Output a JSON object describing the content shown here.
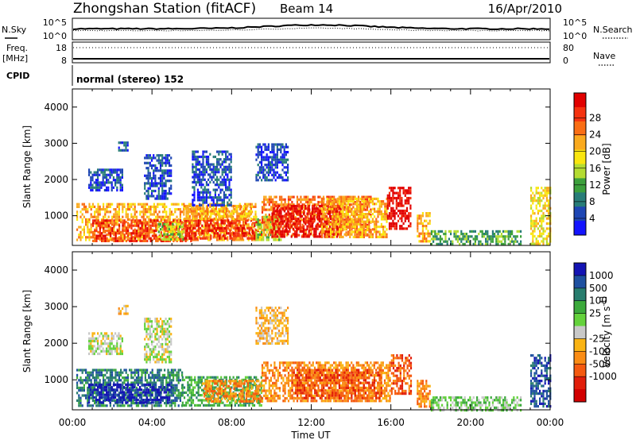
{
  "header": {
    "title": "Zhongshan Station (fitACF)",
    "beam": "Beam 14",
    "date": "16/Apr/2010"
  },
  "top_panels": {
    "nsky_label": "N.Sky",
    "nsearch_label": "N.Search",
    "noise_ticks": [
      "10^5",
      "10^0"
    ],
    "freq_label_1": "Freq.",
    "freq_label_2": "[MHz]",
    "freq_ticks": [
      "18",
      "8"
    ],
    "nave_label": "Nave",
    "nave_ticks": [
      "80",
      "0"
    ],
    "cpid_label": "CPID",
    "cpid_text": "normal (stereo) 152"
  },
  "chart_data": [
    {
      "type": "heatmap",
      "name": "power",
      "xlabel": "Time UT",
      "ylabel": "Slant Range [km]",
      "xlim_hours": [
        0,
        24
      ],
      "ylim_km": [
        180,
        4500
      ],
      "x_ticks": [
        "00:00",
        "04:00",
        "08:00",
        "12:00",
        "16:00",
        "20:00",
        "00:00"
      ],
      "y_ticks": [
        1000,
        2000,
        3000,
        4000
      ],
      "colorbar": {
        "label": "Power [dB]",
        "ticks": [
          "4",
          "8",
          "12",
          "16",
          "20",
          "24",
          "28"
        ],
        "colors": [
          "#1414ff",
          "#1e46b4",
          "#287d78",
          "#3ca03c",
          "#b4dc32",
          "#fae60f",
          "#faaa1e",
          "#fa6e14",
          "#f5320f",
          "#e10000"
        ]
      },
      "echo_regions": [
        {
          "t": [
            0.2,
            9.2
          ],
          "r": [
            300,
            1350
          ],
          "level": 6
        },
        {
          "t": [
            1.0,
            6.0
          ],
          "r": [
            300,
            900
          ],
          "level": 8
        },
        {
          "t": [
            4.3,
            5.6
          ],
          "r": [
            350,
            800
          ],
          "level": 4
        },
        {
          "t": [
            5.6,
            9.5
          ],
          "r": [
            400,
            900
          ],
          "level": 8
        },
        {
          "t": [
            5.6,
            9.0
          ],
          "r": [
            900,
            1300
          ],
          "level": 6
        },
        {
          "t": [
            9.2,
            10.5
          ],
          "r": [
            300,
            1000
          ],
          "level": 4
        },
        {
          "t": [
            9.5,
            15.0
          ],
          "r": [
            450,
            1550
          ],
          "level": 7
        },
        {
          "t": [
            10.0,
            13.5
          ],
          "r": [
            450,
            1300
          ],
          "level": 9
        },
        {
          "t": [
            12.5,
            15.8
          ],
          "r": [
            400,
            1500
          ],
          "level": 6
        },
        {
          "t": [
            15.8,
            17.0
          ],
          "r": [
            650,
            1800
          ],
          "level": 9
        },
        {
          "t": [
            17.3,
            18.0
          ],
          "r": [
            300,
            1100
          ],
          "level": 6
        },
        {
          "t": [
            18.0,
            22.5
          ],
          "r": [
            200,
            600
          ],
          "level": 3
        },
        {
          "t": [
            23.0,
            24.0
          ],
          "r": [
            250,
            1800
          ],
          "level": 5
        },
        {
          "t": [
            0.8,
            2.5
          ],
          "r": [
            1700,
            2300
          ],
          "level": 1
        },
        {
          "t": [
            3.6,
            5.0
          ],
          "r": [
            1500,
            2700
          ],
          "level": 1
        },
        {
          "t": [
            2.3,
            2.8
          ],
          "r": [
            2800,
            3050
          ],
          "level": 1
        },
        {
          "t": [
            9.2,
            10.8
          ],
          "r": [
            2000,
            3000
          ],
          "level": 1
        },
        {
          "t": [
            6.0,
            8.0
          ],
          "r": [
            1300,
            2800
          ],
          "level": 1
        }
      ]
    },
    {
      "type": "heatmap",
      "name": "velocity",
      "xlabel": "Time UT",
      "ylabel": "Slant Range [km]",
      "xlim_hours": [
        0,
        24
      ],
      "ylim_km": [
        180,
        4500
      ],
      "x_ticks": [
        "00:00",
        "04:00",
        "08:00",
        "12:00",
        "16:00",
        "20:00",
        "00:00"
      ],
      "y_ticks": [
        1000,
        2000,
        3000,
        4000
      ],
      "colorbar": {
        "label": "Velocity [m s^-1]",
        "ticks": [
          "1000",
          "500",
          "100",
          "25",
          "-25",
          "-100",
          "-500",
          "-1000"
        ],
        "colors": [
          "#1414b4",
          "#1e50a0",
          "#287d6e",
          "#3caa3c",
          "#64d23c",
          "#c8c8c8",
          "#fab414",
          "#fa8c14",
          "#f55a0f",
          "#e11e0a",
          "#d20000"
        ]
      },
      "echo_regions": [
        {
          "t": [
            0.2,
            5.5
          ],
          "r": [
            300,
            1300
          ],
          "level": 2
        },
        {
          "t": [
            0.8,
            5.0
          ],
          "r": [
            350,
            900
          ],
          "level": 0
        },
        {
          "t": [
            5.5,
            9.5
          ],
          "r": [
            300,
            1100
          ],
          "level": 3
        },
        {
          "t": [
            6.5,
            9.5
          ],
          "r": [
            400,
            1000
          ],
          "level": 7
        },
        {
          "t": [
            9.5,
            16.0
          ],
          "r": [
            400,
            1500
          ],
          "level": 7
        },
        {
          "t": [
            11.0,
            15.5
          ],
          "r": [
            500,
            1300
          ],
          "level": 8
        },
        {
          "t": [
            16.0,
            17.0
          ],
          "r": [
            600,
            1700
          ],
          "level": 8
        },
        {
          "t": [
            17.3,
            18.0
          ],
          "r": [
            300,
            1000
          ],
          "level": 7
        },
        {
          "t": [
            18.0,
            22.5
          ],
          "r": [
            200,
            550
          ],
          "level": 4
        },
        {
          "t": [
            23.0,
            24.0
          ],
          "r": [
            250,
            1700
          ],
          "level": 1
        },
        {
          "t": [
            0.8,
            2.5
          ],
          "r": [
            1700,
            2300
          ],
          "level": 5
        },
        {
          "t": [
            3.6,
            5.0
          ],
          "r": [
            1500,
            2700
          ],
          "level": 5
        },
        {
          "t": [
            2.3,
            2.8
          ],
          "r": [
            2800,
            3050
          ],
          "level": 6
        },
        {
          "t": [
            9.2,
            10.8
          ],
          "r": [
            2000,
            3000
          ],
          "level": 6
        }
      ]
    }
  ]
}
